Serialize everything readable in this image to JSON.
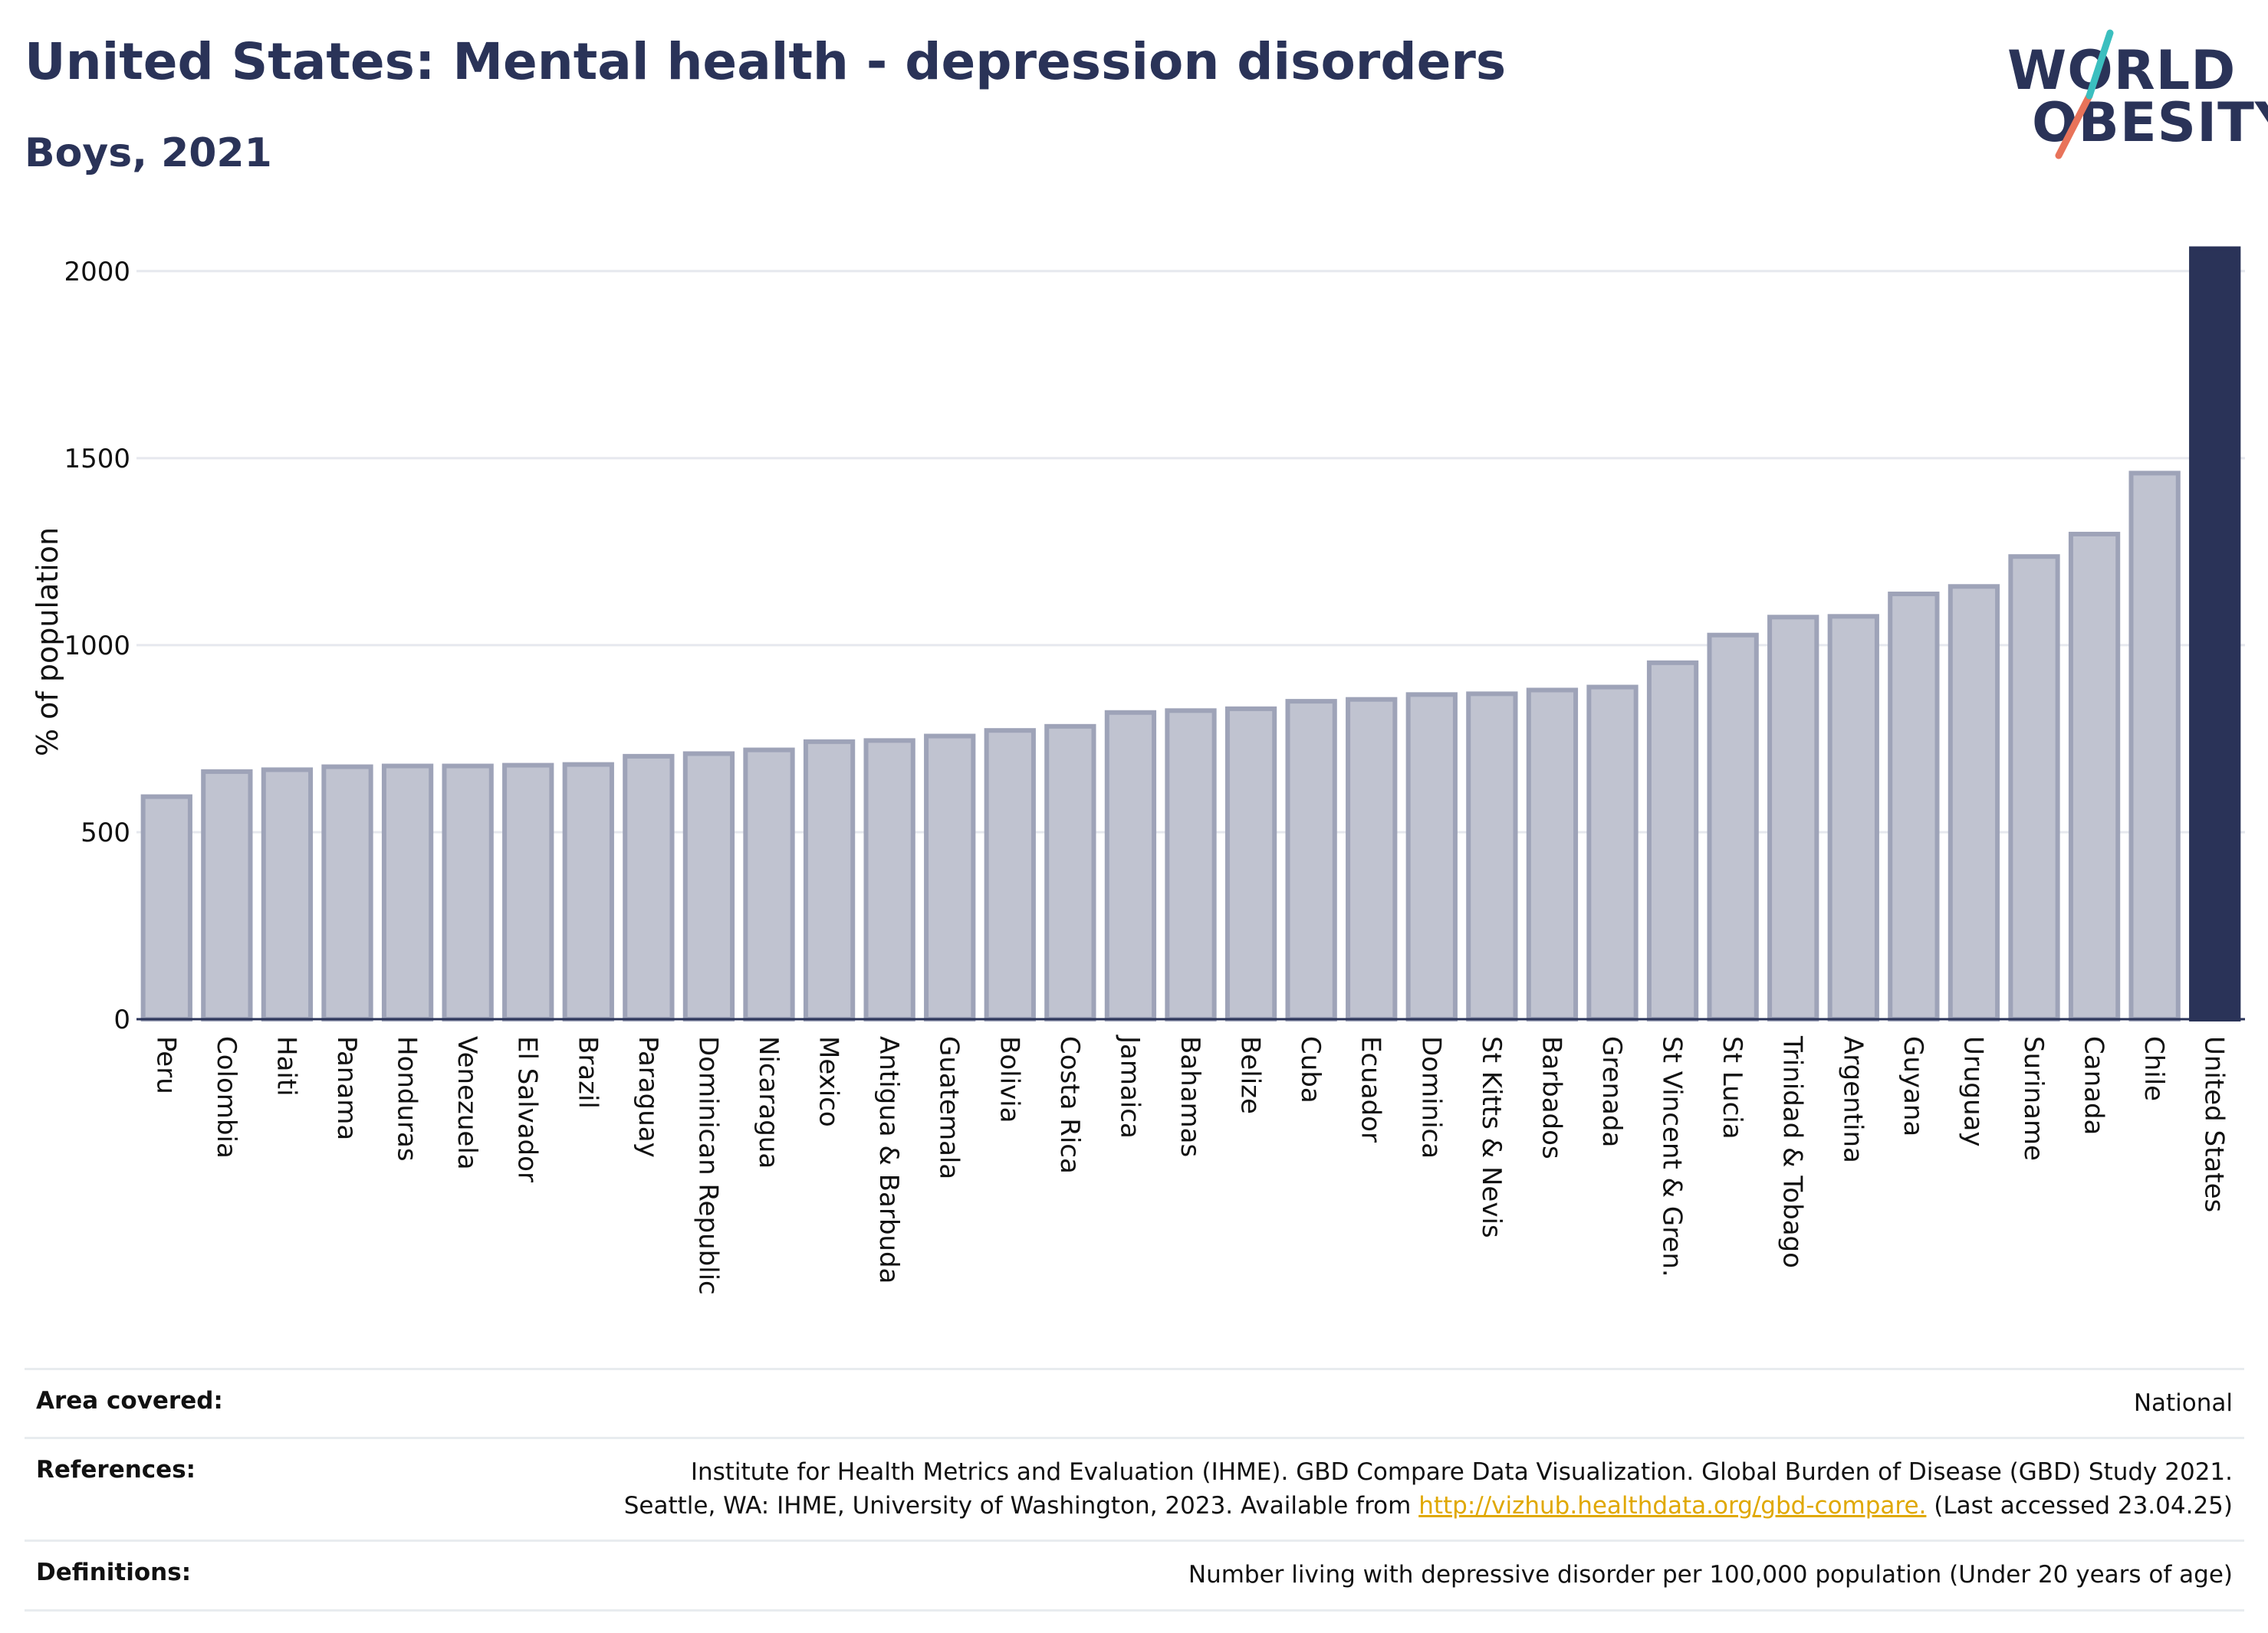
{
  "header": {
    "title": "United States: Mental health - depression disorders",
    "subtitle": "Boys, 2021",
    "logo_line1": "WORLD",
    "logo_line2": "OBESITY"
  },
  "chart_data": {
    "type": "bar",
    "title": "United States: Mental health - depression disorders",
    "subtitle": "Boys, 2021",
    "xlabel": "",
    "ylabel": "% of population",
    "ylim": [
      0,
      2100
    ],
    "yticks": [
      0,
      500,
      1000,
      1500,
      2000
    ],
    "grid": true,
    "categories": [
      "Peru",
      "Colombia",
      "Haiti",
      "Panama",
      "Honduras",
      "Venezuela",
      "El Salvador",
      "Brazil",
      "Paraguay",
      "Dominican Republic",
      "Nicaragua",
      "Mexico",
      "Antigua & Barbuda",
      "Guatemala",
      "Bolivia",
      "Costa Rica",
      "Jamaica",
      "Bahamas",
      "Belize",
      "Cuba",
      "Ecuador",
      "Dominica",
      "St Kitts & Nevis",
      "Barbados",
      "Grenada",
      "St Vincent & Gren.",
      "St Lucia",
      "Trinidad & Tobago",
      "Argentina",
      "Guyana",
      "Uruguay",
      "Suriname",
      "Canada",
      "Chile",
      "United States"
    ],
    "values": [
      595,
      662,
      667,
      675,
      677,
      677,
      679,
      681,
      703,
      710,
      720,
      742,
      745,
      757,
      772,
      783,
      820,
      825,
      830,
      850,
      855,
      868,
      870,
      880,
      888,
      953,
      1027,
      1075,
      1077,
      1137,
      1157,
      1237,
      1297,
      1460,
      2060
    ],
    "highlight": "United States",
    "colors": {
      "bar": "#c0c3d0",
      "bar_edge": "#9ea3b8",
      "highlight": "#2a3358"
    }
  },
  "footer": {
    "area_label": "Area covered:",
    "area_value": "National",
    "references_label": "References:",
    "references_line1": "Institute for Health Metrics and Evaluation (IHME). GBD Compare Data Visualization. Global Burden of Disease (GBD) Study 2021.",
    "references_line2_pre": "Seattle, WA: IHME, University of Washington, 2023. Available from ",
    "references_link": "http://vizhub.healthdata.org/gbd-compare.",
    "references_line2_post": " (Last accessed 23.04.25)",
    "definitions_label": "Definitions:",
    "definitions_value": "Number living with depressive disorder per 100,000 population (Under 20 years of age)"
  }
}
